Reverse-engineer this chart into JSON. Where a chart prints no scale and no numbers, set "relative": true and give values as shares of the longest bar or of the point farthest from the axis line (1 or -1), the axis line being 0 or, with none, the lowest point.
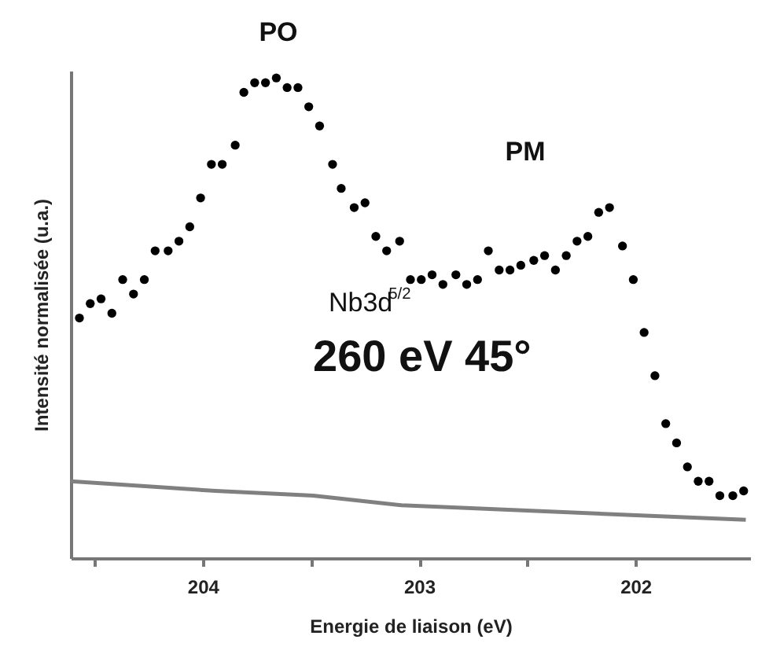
{
  "chart_data": {
    "type": "scatter",
    "relative": true,
    "xlabel": "Energie de liaison (eV)",
    "ylabel": "Intensité normalisée (u.a.)",
    "xlim": [
      204.61,
      201.47
    ],
    "xticks": [
      204,
      {
        "value": 204.5,
        "label": null
      },
      {
        "value": 203.5,
        "label": null
      },
      203,
      {
        "value": 202.5,
        "label": null
      },
      202
    ],
    "tick_labels": "x",
    "grid": false,
    "annotations": [
      "PO",
      "PM",
      "Nb3d$^{5/2}$",
      "260 eV  45°"
    ],
    "series": [
      {
        "marker": "circle",
        "color": "#000000",
        "x": [
          204.57,
          204.52,
          204.47,
          204.42,
          204.37,
          204.32,
          204.27,
          204.22,
          204.16,
          204.11,
          204.06,
          204.01,
          203.96,
          203.91,
          203.85,
          203.81,
          203.76,
          203.71,
          203.66,
          203.61,
          203.56,
          203.51,
          203.46,
          203.4,
          203.36,
          203.3,
          203.25,
          203.2,
          203.15,
          203.09,
          203.04,
          202.99,
          202.94,
          202.89,
          202.83,
          202.78,
          202.73,
          202.68,
          202.63,
          202.58,
          202.53,
          202.47,
          202.42,
          202.37,
          202.32,
          202.27,
          202.22,
          202.17,
          202.12,
          202.06,
          202.01,
          201.96,
          201.91,
          201.86,
          201.81,
          201.76,
          201.71,
          201.66,
          201.61,
          201.55,
          201.5
        ],
        "values": [
          0.5,
          0.53,
          0.54,
          0.51,
          0.58,
          0.55,
          0.58,
          0.64,
          0.64,
          0.66,
          0.69,
          0.75,
          0.82,
          0.82,
          0.86,
          0.97,
          0.99,
          0.99,
          1.0,
          0.98,
          0.98,
          0.94,
          0.9,
          0.82,
          0.77,
          0.73,
          0.74,
          0.67,
          0.64,
          0.66,
          0.58,
          0.58,
          0.59,
          0.57,
          0.59,
          0.57,
          0.58,
          0.64,
          0.6,
          0.6,
          0.61,
          0.62,
          0.63,
          0.6,
          0.63,
          0.66,
          0.67,
          0.72,
          0.73,
          0.65,
          0.58,
          0.47,
          0.38,
          0.28,
          0.24,
          0.19,
          0.16,
          0.16,
          0.13,
          0.13,
          0.14
        ]
      },
      {
        "type": "line",
        "color": "#808080",
        "x": [
          204.61,
          203.94,
          203.49,
          203.08,
          202.04,
          201.49
        ],
        "values": [
          0.16,
          0.14,
          0.13,
          0.11,
          0.09,
          0.08
        ]
      }
    ]
  }
}
